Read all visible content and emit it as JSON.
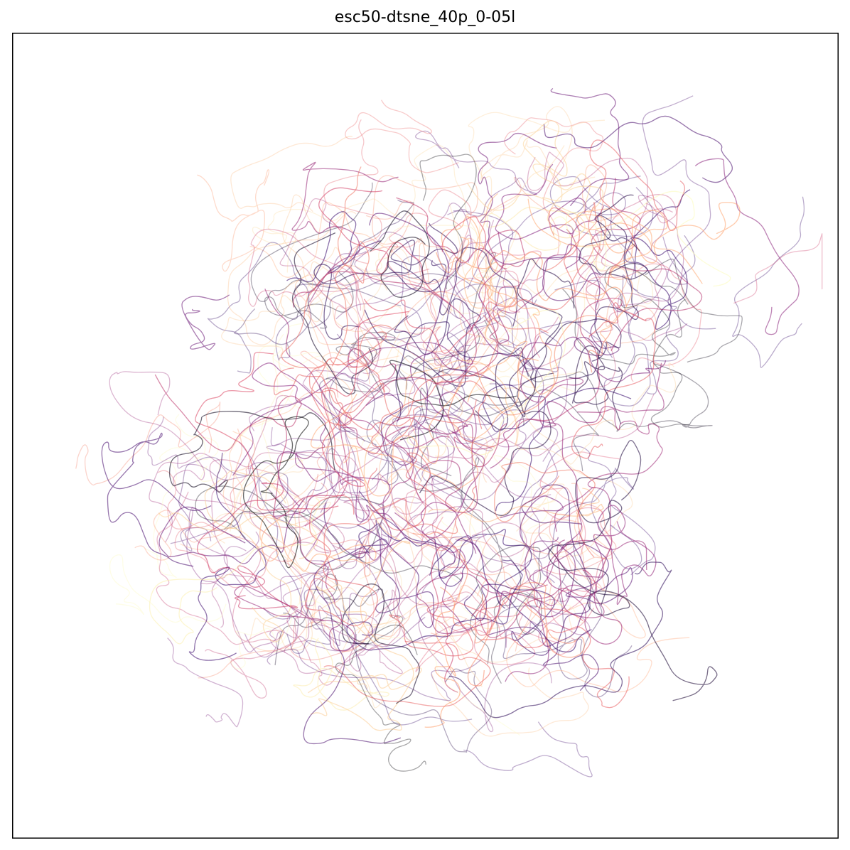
{
  "chart_data": {
    "type": "line",
    "title": "esc50-dtsne_40p_0-05l",
    "xlabel": "",
    "ylabel": "",
    "xticks": [],
    "yticks": [],
    "grid": false,
    "legend": "none",
    "colormap": [
      "#000004",
      "#3b0f70",
      "#8c2981",
      "#de4968",
      "#fe9f6d",
      "#fcfdbf"
    ],
    "line_alpha": 0.25,
    "series_count": 400,
    "description_region": "dense cloud of smooth trajectories",
    "series": []
  }
}
